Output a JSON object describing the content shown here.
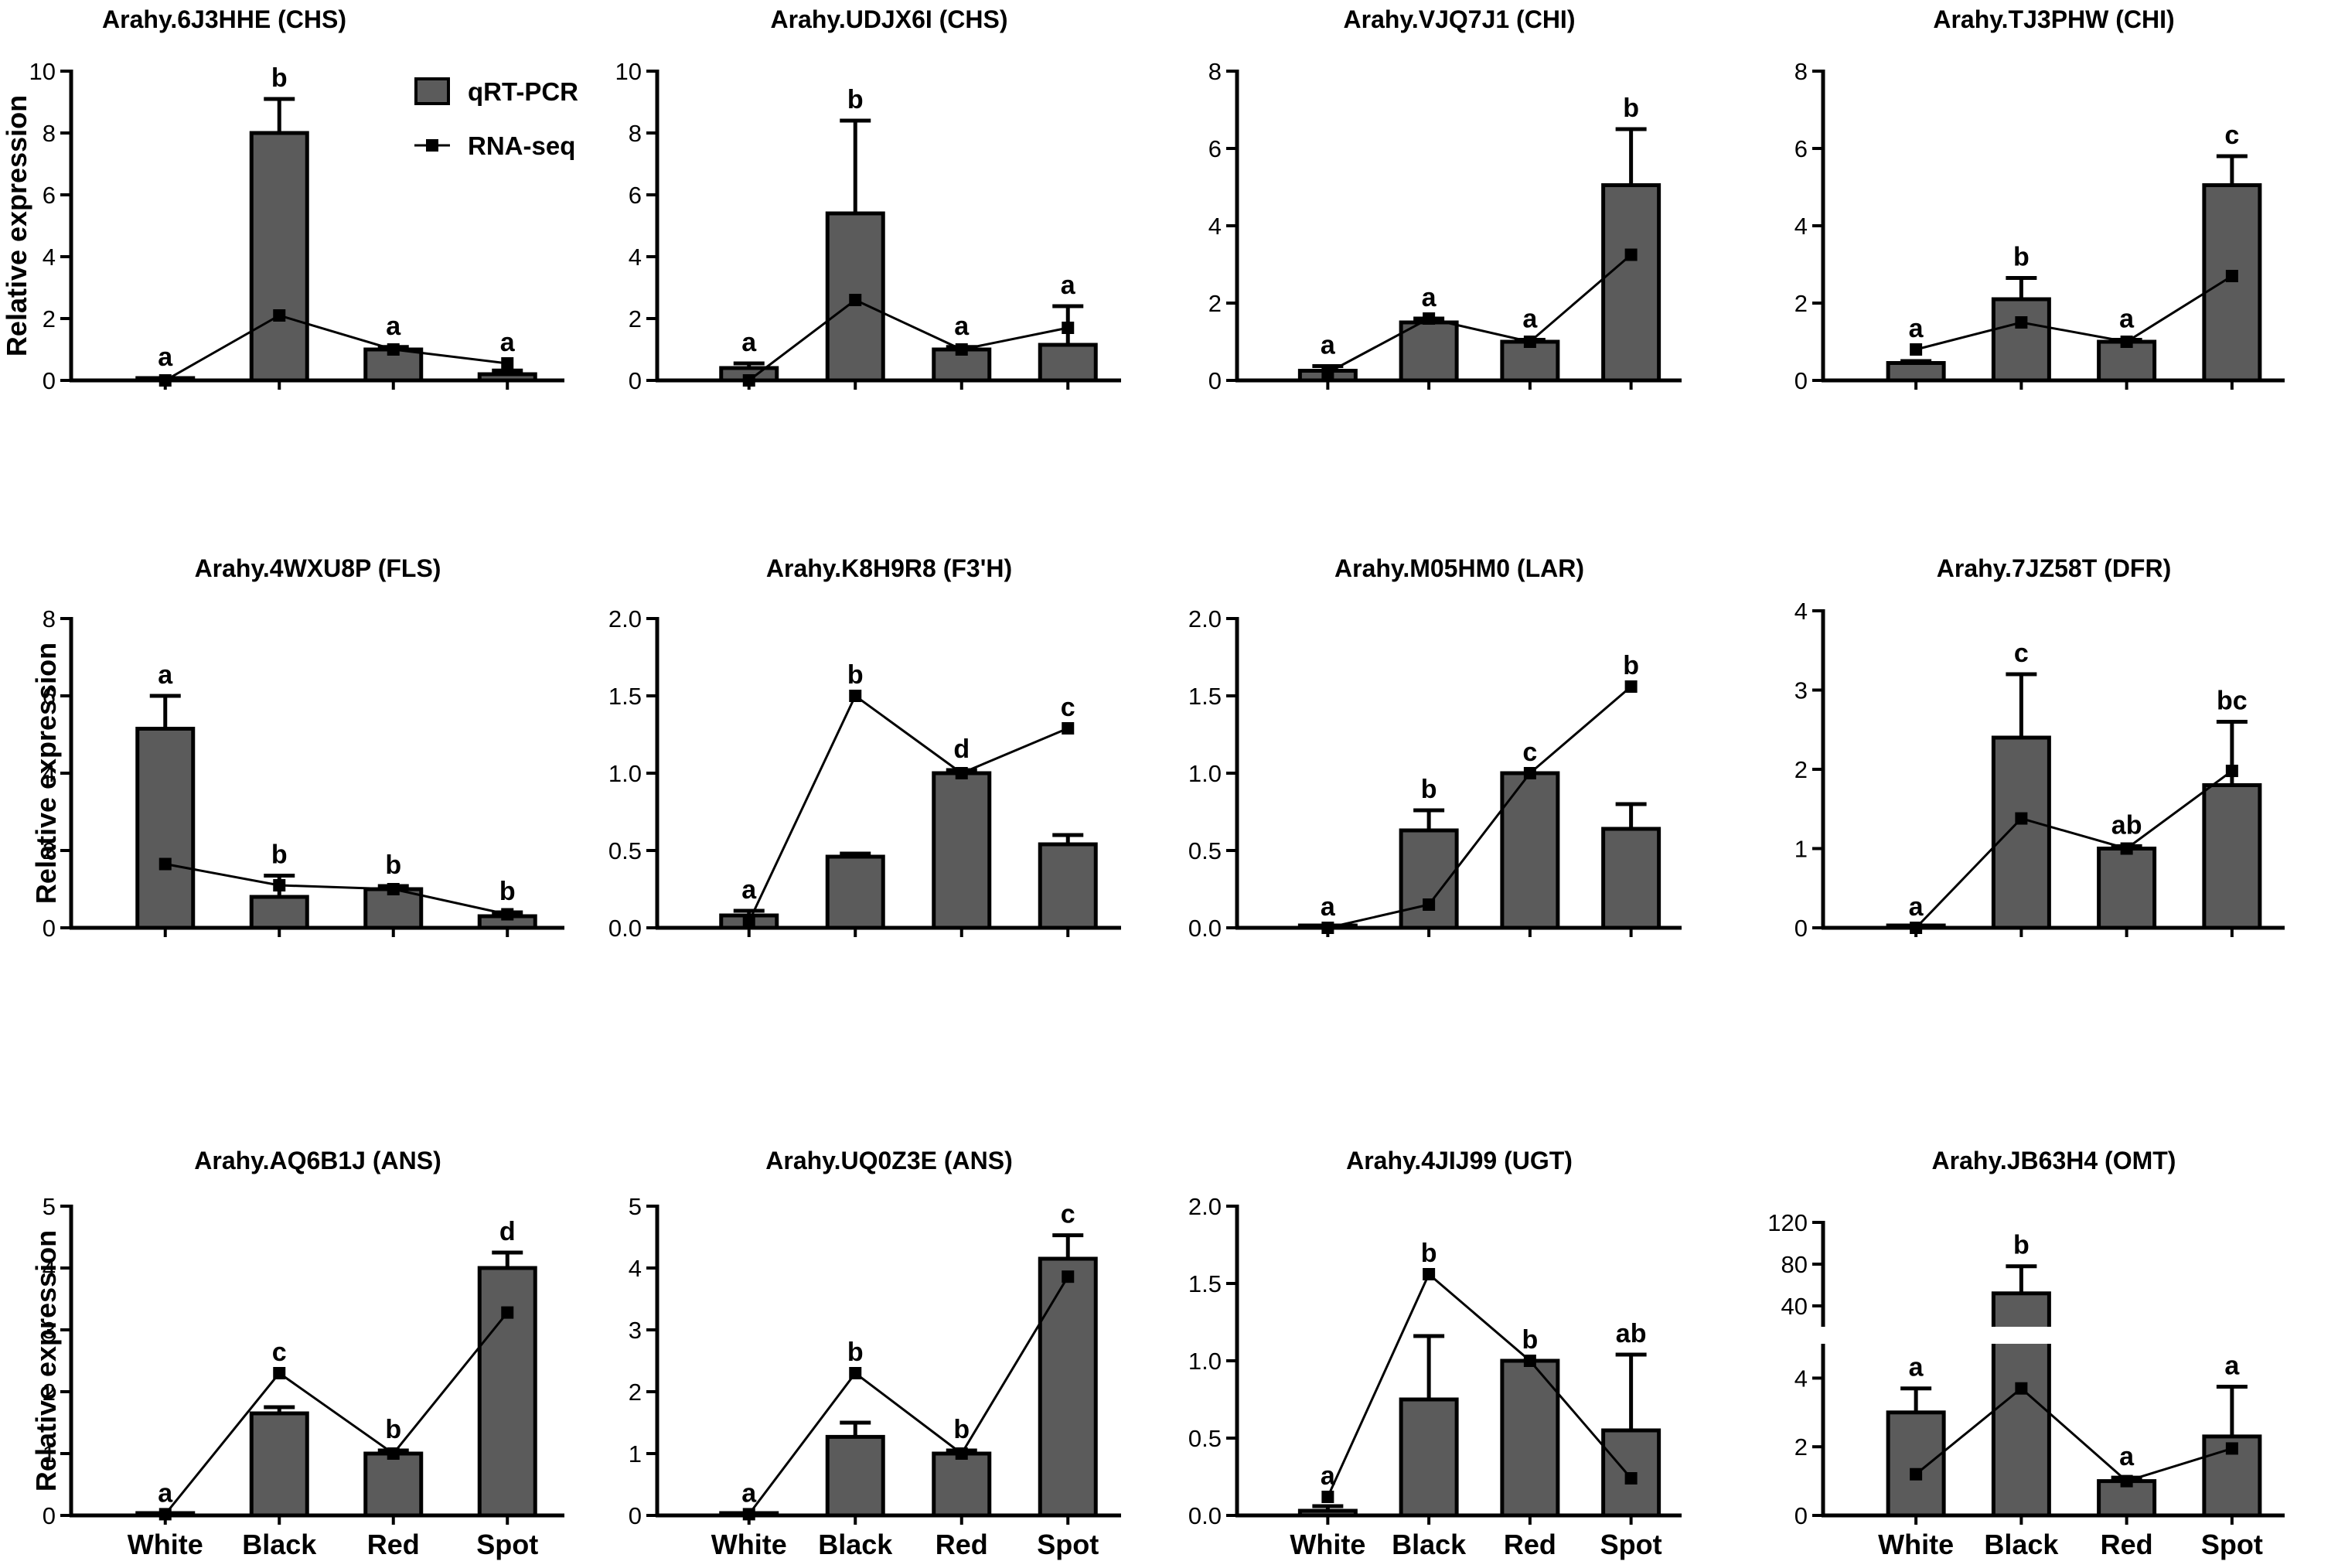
{
  "chart_data": [
    {
      "type": "bar",
      "title": "Arahy.6J3HHE (CHS)",
      "ylabel": "Relative expression",
      "categories": [
        "White",
        "Black",
        "Red",
        "Spot"
      ],
      "ylim": [
        0,
        10
      ],
      "yticks": [
        0,
        2,
        4,
        6,
        8,
        10
      ],
      "series": [
        {
          "name": "qRT-PCR",
          "values": [
            0.05,
            8.0,
            1.0,
            0.2
          ],
          "errors": [
            0.02,
            1.1,
            0.08,
            0.12
          ]
        },
        {
          "name": "RNA-seq",
          "values": [
            0.0,
            2.1,
            1.0,
            0.55
          ]
        }
      ],
      "significance": [
        "a",
        "b",
        "a",
        "a"
      ],
      "legend": {
        "position": "top-right",
        "entries": [
          "qRT-PCR",
          "RNA-seq"
        ]
      }
    },
    {
      "type": "bar",
      "title": "Arahy.UDJX6I (CHS)",
      "ylabel": "",
      "categories": [
        "White",
        "Black",
        "Red",
        "Spot"
      ],
      "ylim": [
        0,
        10
      ],
      "yticks": [
        0,
        2,
        4,
        6,
        8,
        10
      ],
      "series": [
        {
          "name": "qRT-PCR",
          "values": [
            0.4,
            5.4,
            1.0,
            1.15
          ],
          "errors": [
            0.15,
            3.0,
            0.08,
            1.25
          ]
        },
        {
          "name": "RNA-seq",
          "values": [
            0.0,
            2.6,
            1.0,
            1.7
          ]
        }
      ],
      "significance": [
        "a",
        "b",
        "a",
        "a"
      ]
    },
    {
      "type": "bar",
      "title": "Arahy.VJQ7J1 (CHI)",
      "ylabel": "",
      "categories": [
        "White",
        "Black",
        "Red",
        "Spot"
      ],
      "ylim": [
        0,
        8
      ],
      "yticks": [
        0,
        2,
        4,
        6,
        8
      ],
      "series": [
        {
          "name": "qRT-PCR",
          "values": [
            0.25,
            1.5,
            1.0,
            5.05
          ],
          "errors": [
            0.12,
            0.1,
            0.05,
            1.45
          ]
        },
        {
          "name": "RNA-seq",
          "values": [
            0.2,
            1.6,
            1.0,
            3.25
          ]
        }
      ],
      "significance": [
        "a",
        "a",
        "a",
        "b"
      ]
    },
    {
      "type": "bar",
      "title": "Arahy.TJ3PHW (CHI)",
      "ylabel": "",
      "categories": [
        "White",
        "Black",
        "Red",
        "Spot"
      ],
      "ylim": [
        0,
        8
      ],
      "yticks": [
        0,
        2,
        4,
        6,
        8
      ],
      "series": [
        {
          "name": "qRT-PCR",
          "values": [
            0.45,
            2.1,
            1.0,
            5.05
          ],
          "errors": [
            0.05,
            0.55,
            0.05,
            0.75
          ]
        },
        {
          "name": "RNA-seq",
          "values": [
            0.8,
            1.5,
            1.0,
            2.7
          ]
        }
      ],
      "significance": [
        "a",
        "b",
        "a",
        "c"
      ]
    },
    {
      "type": "bar",
      "title": "Arahy.4WXU8P (FLS)",
      "ylabel": "Relative expression",
      "categories": [
        "White",
        "Black",
        "Red",
        "Spot"
      ],
      "ylim": [
        0,
        8
      ],
      "yticks": [
        0,
        2,
        4,
        6,
        8
      ],
      "series": [
        {
          "name": "qRT-PCR",
          "values": [
            5.15,
            0.8,
            1.0,
            0.3
          ],
          "errors": [
            0.85,
            0.55,
            0.08,
            0.1
          ]
        },
        {
          "name": "RNA-seq",
          "values": [
            1.65,
            1.1,
            1.0,
            0.35
          ]
        }
      ],
      "significance": [
        "a",
        "b",
        "b",
        "b"
      ]
    },
    {
      "type": "bar",
      "title": "Arahy.K8H9R8 (F3'H)",
      "ylabel": "",
      "categories": [
        "White",
        "Black",
        "Red",
        "Spot"
      ],
      "ylim": [
        0,
        2.0
      ],
      "yticks": [
        "0.0",
        "0.5",
        "1.0",
        "1.5",
        "2.0"
      ],
      "series": [
        {
          "name": "qRT-PCR",
          "values": [
            0.08,
            0.46,
            1.0,
            0.54
          ],
          "errors": [
            0.03,
            0.02,
            0.02,
            0.06
          ]
        },
        {
          "name": "RNA-seq",
          "values": [
            0.04,
            1.5,
            1.0,
            1.29
          ]
        }
      ],
      "significance": [
        "a",
        "b",
        "d",
        "c"
      ]
    },
    {
      "type": "bar",
      "title": "Arahy.M05HM0 (LAR)",
      "ylabel": "",
      "categories": [
        "White",
        "Black",
        "Red",
        "Spot"
      ],
      "ylim": [
        0,
        2.0
      ],
      "yticks": [
        "0.0",
        "0.5",
        "1.0",
        "1.5",
        "2.0"
      ],
      "series": [
        {
          "name": "qRT-PCR",
          "values": [
            0.0,
            0.63,
            1.0,
            0.64
          ],
          "errors": [
            0.0,
            0.13,
            0.0,
            0.16
          ]
        },
        {
          "name": "RNA-seq",
          "values": [
            0.0,
            0.15,
            1.0,
            1.56
          ]
        }
      ],
      "significance": [
        "a",
        "b",
        "c",
        "b"
      ]
    },
    {
      "type": "bar",
      "title": "Arahy.7JZ58T (DFR)",
      "ylabel": "",
      "categories": [
        "White",
        "Black",
        "Red",
        "Spot"
      ],
      "ylim": [
        0,
        4
      ],
      "yticks": [
        0,
        1,
        2,
        3,
        4
      ],
      "series": [
        {
          "name": "qRT-PCR",
          "values": [
            0.0,
            2.4,
            1.0,
            1.8
          ],
          "errors": [
            0.0,
            0.8,
            0.03,
            0.8
          ]
        },
        {
          "name": "RNA-seq",
          "values": [
            0.0,
            1.38,
            1.0,
            1.98
          ]
        }
      ],
      "significance": [
        "a",
        "c",
        "ab",
        "bc"
      ]
    },
    {
      "type": "bar",
      "title": "Arahy.AQ6B1J (ANS)",
      "ylabel": "Relative expression",
      "categories": [
        "White",
        "Black",
        "Red",
        "Spot"
      ],
      "ylim": [
        0,
        5
      ],
      "yticks": [
        0,
        1,
        2,
        3,
        4,
        5
      ],
      "series": [
        {
          "name": "qRT-PCR",
          "values": [
            0.02,
            1.65,
            1.0,
            4.0
          ],
          "errors": [
            0.0,
            0.1,
            0.05,
            0.25
          ]
        },
        {
          "name": "RNA-seq",
          "values": [
            0.02,
            2.3,
            1.0,
            3.28
          ]
        }
      ],
      "significance": [
        "a",
        "c",
        "b",
        "d"
      ]
    },
    {
      "type": "bar",
      "title": "Arahy.UQ0Z3E (ANS)",
      "ylabel": "",
      "categories": [
        "White",
        "Black",
        "Red",
        "Spot"
      ],
      "ylim": [
        0,
        5
      ],
      "yticks": [
        0,
        1,
        2,
        3,
        4,
        5
      ],
      "series": [
        {
          "name": "qRT-PCR",
          "values": [
            0.02,
            1.27,
            1.0,
            4.15
          ],
          "errors": [
            0.0,
            0.23,
            0.05,
            0.38
          ]
        },
        {
          "name": "RNA-seq",
          "values": [
            0.02,
            2.3,
            1.0,
            3.86
          ]
        }
      ],
      "significance": [
        "a",
        "b",
        "b",
        "c"
      ]
    },
    {
      "type": "bar",
      "title": "Arahy.4JIJ99 (UGT)",
      "ylabel": "",
      "categories": [
        "White",
        "Black",
        "Red",
        "Spot"
      ],
      "ylim": [
        0,
        2.0
      ],
      "yticks": [
        "0.0",
        "0.5",
        "1.0",
        "1.5",
        "2.0"
      ],
      "series": [
        {
          "name": "qRT-PCR",
          "values": [
            0.03,
            0.75,
            1.0,
            0.55
          ],
          "errors": [
            0.03,
            0.41,
            0.0,
            0.49
          ]
        },
        {
          "name": "RNA-seq",
          "values": [
            0.12,
            1.56,
            1.0,
            0.24
          ]
        }
      ],
      "significance": [
        "a",
        "b",
        "b",
        "ab"
      ]
    },
    {
      "type": "bar",
      "title": "Arahy.JB63H4 (OMT)",
      "ylabel": "",
      "categories": [
        "White",
        "Black",
        "Red",
        "Spot"
      ],
      "axis_break": {
        "lower_range": [
          0,
          5
        ],
        "lower_ticks": [
          0,
          2,
          4
        ],
        "upper_range": [
          20,
          120
        ],
        "upper_ticks": [
          40,
          80,
          120
        ]
      },
      "series": [
        {
          "name": "qRT-PCR",
          "values": [
            3.0,
            52,
            1.0,
            2.3
          ],
          "errors": [
            0.7,
            26,
            0.1,
            1.45
          ]
        },
        {
          "name": "RNA-seq",
          "values": [
            1.2,
            3.7,
            1.0,
            1.95
          ]
        }
      ],
      "significance": [
        "a",
        "b",
        "a",
        "a"
      ]
    }
  ]
}
